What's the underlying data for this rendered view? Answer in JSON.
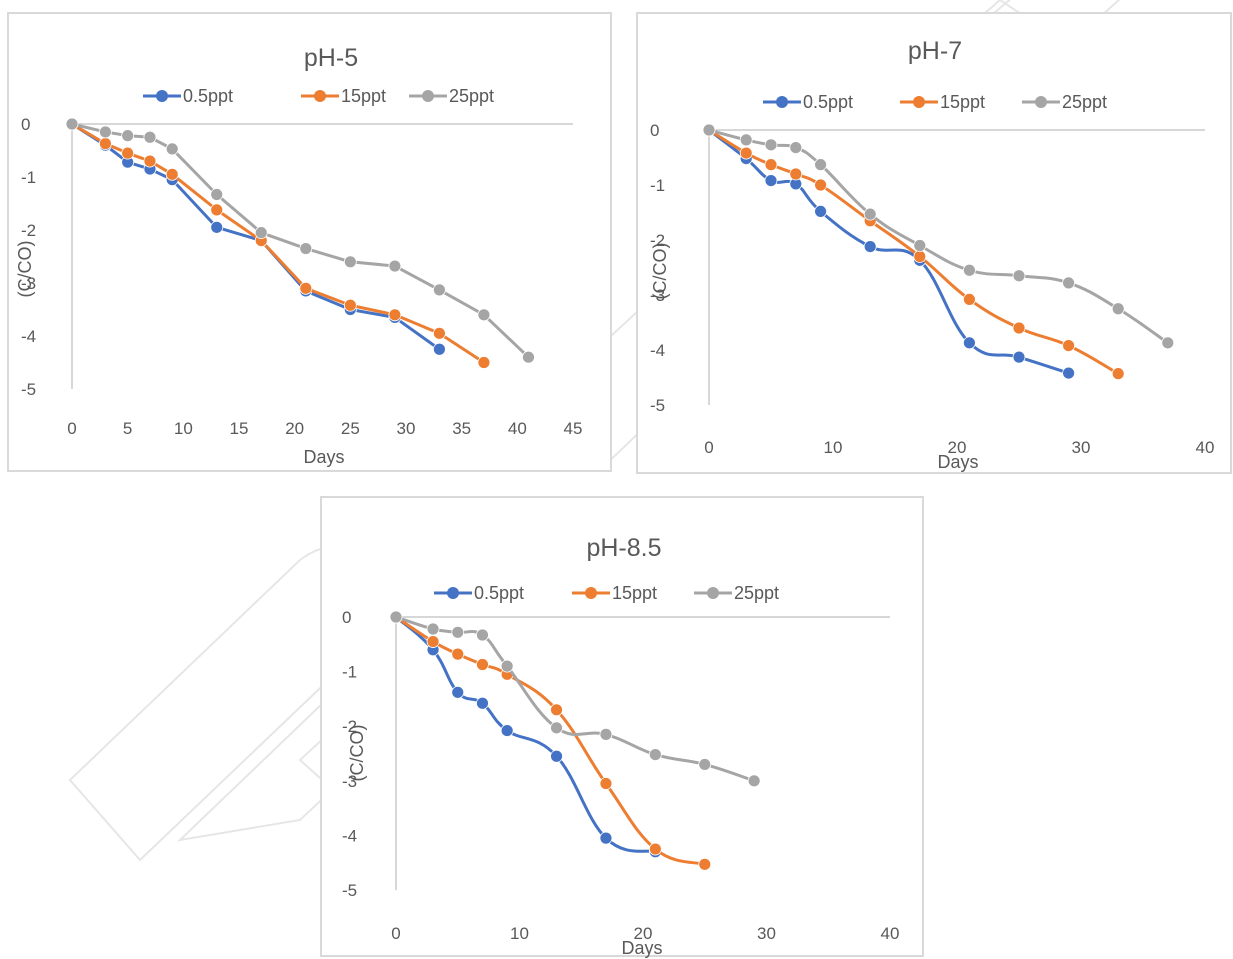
{
  "chart_data": [
    {
      "type": "line",
      "title": "pH-5",
      "xlabel": "Days",
      "ylabel": "(C/CO)",
      "xlim": [
        0,
        45
      ],
      "ylim": [
        -5,
        0
      ],
      "xticks": [
        "0",
        "5",
        "10",
        "15",
        "20",
        "25",
        "30",
        "35",
        "40",
        "45"
      ],
      "yticks": [
        "0",
        "-1",
        "-2",
        "-3",
        "-4",
        "-5"
      ],
      "legend_position": "top",
      "grid": false,
      "smooth": false,
      "series": [
        {
          "name": "0.5ppt",
          "color": "#4472c4",
          "x": [
            0,
            3,
            5,
            7,
            9,
            13,
            17,
            21,
            25,
            29,
            33
          ],
          "y": [
            0,
            -0.4,
            -0.72,
            -0.85,
            -1.05,
            -1.95,
            -2.2,
            -3.15,
            -3.5,
            -3.65,
            -4.25
          ]
        },
        {
          "name": "15ppt",
          "color": "#ed7d31",
          "x": [
            0,
            3,
            5,
            7,
            9,
            13,
            17,
            21,
            25,
            29,
            33,
            37
          ],
          "y": [
            0,
            -0.37,
            -0.55,
            -0.7,
            -0.95,
            -1.62,
            -2.2,
            -3.1,
            -3.42,
            -3.6,
            -3.95,
            -4.5
          ]
        },
        {
          "name": "25ppt",
          "color": "#a5a5a5",
          "x": [
            0,
            3,
            5,
            7,
            9,
            13,
            17,
            21,
            25,
            29,
            33,
            37,
            41
          ],
          "y": [
            0,
            -0.15,
            -0.22,
            -0.25,
            -0.47,
            -1.33,
            -2.05,
            -2.35,
            -2.6,
            -2.68,
            -3.13,
            -3.6,
            -4.4
          ]
        }
      ]
    },
    {
      "type": "line",
      "title": "pH-7",
      "xlabel": "Days",
      "ylabel": "(C/CO)",
      "xlim": [
        0,
        40
      ],
      "ylim": [
        -5,
        0
      ],
      "xticks": [
        "0",
        "10",
        "20",
        "30",
        "40"
      ],
      "yticks": [
        "0",
        "-1",
        "-2",
        "-3",
        "-4",
        "-5"
      ],
      "legend_position": "top",
      "grid": false,
      "smooth": true,
      "series": [
        {
          "name": "0.5ppt",
          "color": "#4472c4",
          "x": [
            0,
            3,
            5,
            7,
            9,
            13,
            17,
            21,
            25,
            29
          ],
          "y": [
            0,
            -0.52,
            -0.92,
            -0.98,
            -1.48,
            -2.12,
            -2.37,
            -3.87,
            -4.13,
            -4.42
          ]
        },
        {
          "name": "15ppt",
          "color": "#ed7d31",
          "x": [
            0,
            3,
            5,
            7,
            9,
            13,
            17,
            21,
            25,
            29,
            33
          ],
          "y": [
            0,
            -0.42,
            -0.63,
            -0.8,
            -1.0,
            -1.65,
            -2.3,
            -3.08,
            -3.6,
            -3.92,
            -4.43
          ]
        },
        {
          "name": "25ppt",
          "color": "#a5a5a5",
          "x": [
            0,
            3,
            5,
            7,
            9,
            13,
            17,
            21,
            25,
            29,
            33,
            37
          ],
          "y": [
            0,
            -0.18,
            -0.27,
            -0.32,
            -0.63,
            -1.53,
            -2.1,
            -2.55,
            -2.65,
            -2.78,
            -3.25,
            -3.87
          ]
        }
      ]
    },
    {
      "type": "line",
      "title": "pH-8.5",
      "xlabel": "Days",
      "ylabel": "(C/CO)",
      "xlim": [
        0,
        40
      ],
      "ylim": [
        -5,
        0
      ],
      "xticks": [
        "0",
        "10",
        "20",
        "30",
        "40"
      ],
      "yticks": [
        "0",
        "-1",
        "-2",
        "-3",
        "-4",
        "-5"
      ],
      "legend_position": "top",
      "grid": false,
      "smooth": true,
      "series": [
        {
          "name": "0.5ppt",
          "color": "#4472c4",
          "x": [
            0,
            3,
            5,
            7,
            9,
            13,
            17,
            21
          ],
          "y": [
            0,
            -0.6,
            -1.38,
            -1.58,
            -2.08,
            -2.55,
            -4.05,
            -4.3
          ]
        },
        {
          "name": "15ppt",
          "color": "#ed7d31",
          "x": [
            0,
            3,
            5,
            7,
            9,
            13,
            17,
            21,
            25
          ],
          "y": [
            0,
            -0.45,
            -0.68,
            -0.87,
            -1.05,
            -1.7,
            -3.05,
            -4.25,
            -4.53
          ]
        },
        {
          "name": "25ppt",
          "color": "#a5a5a5",
          "x": [
            0,
            3,
            5,
            7,
            9,
            13,
            17,
            21,
            25,
            29
          ],
          "y": [
            0,
            -0.22,
            -0.28,
            -0.33,
            -0.9,
            -2.03,
            -2.15,
            -2.52,
            -2.7,
            -3.0
          ]
        }
      ]
    }
  ]
}
